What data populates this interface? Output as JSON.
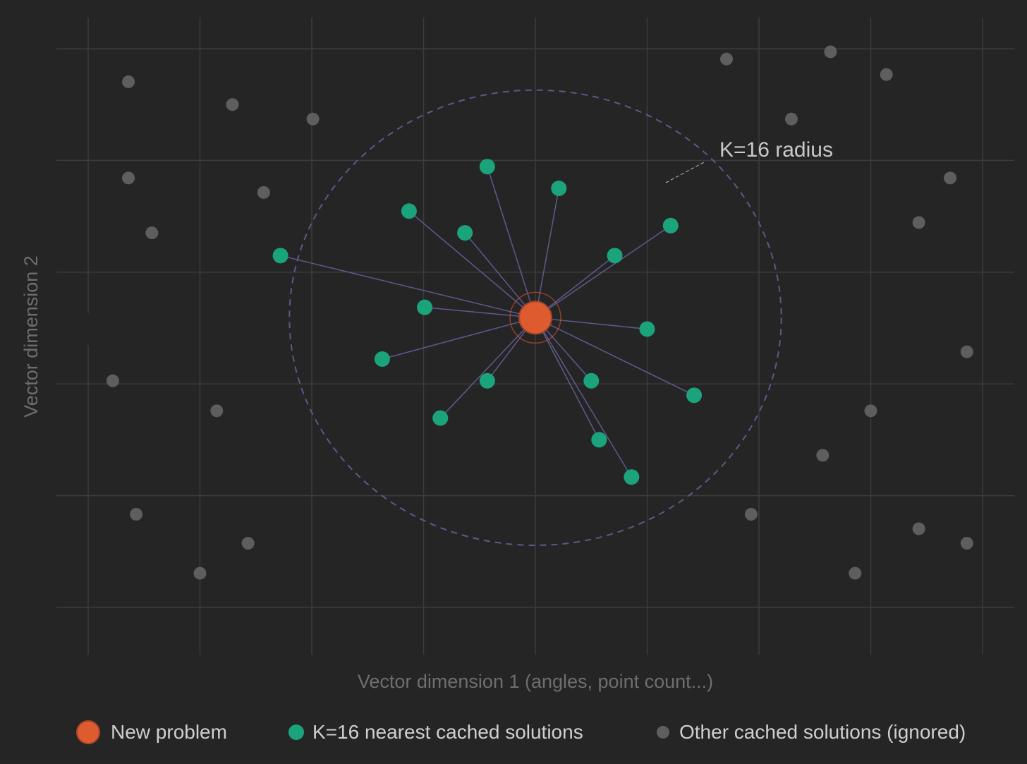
{
  "chart_data": {
    "type": "scatter",
    "title": "",
    "xlabel": "Vector dimension 1 (angles, point count...)",
    "ylabel": "Vector dimension 2",
    "grid": true,
    "legend_position": "bottom",
    "xlim": [
      0.0,
      8.0
    ],
    "ylim": [
      0.0,
      5.4
    ],
    "radius_label": "K=16 radius",
    "center": {
      "x": 4.0,
      "y": 2.8
    },
    "radius": 2.2,
    "series": [
      {
        "name": "New problem",
        "color": "#DE5B2F",
        "points": [
          {
            "x": 4.0,
            "y": 2.8
          }
        ]
      },
      {
        "name": "K=16 nearest cached solutions",
        "color": "#1BA47C",
        "points": [
          {
            "x": 3.57,
            "y": 4.26
          },
          {
            "x": 4.21,
            "y": 4.05
          },
          {
            "x": 2.87,
            "y": 3.83
          },
          {
            "x": 3.37,
            "y": 3.62
          },
          {
            "x": 1.72,
            "y": 3.4
          },
          {
            "x": 4.71,
            "y": 3.4
          },
          {
            "x": 5.21,
            "y": 3.69
          },
          {
            "x": 3.01,
            "y": 2.9
          },
          {
            "x": 5.0,
            "y": 2.69
          },
          {
            "x": 2.63,
            "y": 2.4
          },
          {
            "x": 3.57,
            "y": 2.19
          },
          {
            "x": 4.5,
            "y": 2.19
          },
          {
            "x": 5.42,
            "y": 2.05
          },
          {
            "x": 3.15,
            "y": 1.83
          },
          {
            "x": 4.57,
            "y": 1.62
          },
          {
            "x": 4.86,
            "y": 1.26
          }
        ]
      },
      {
        "name": "Other cached solutions (ignored)",
        "color": "#5E5E5E",
        "points": [
          {
            "x": 0.36,
            "y": 5.08
          },
          {
            "x": 1.29,
            "y": 4.86
          },
          {
            "x": 2.01,
            "y": 4.72
          },
          {
            "x": 0.36,
            "y": 4.15
          },
          {
            "x": 1.57,
            "y": 4.01
          },
          {
            "x": 0.57,
            "y": 3.62
          },
          {
            "x": 0.22,
            "y": 2.19
          },
          {
            "x": 1.15,
            "y": 1.9
          },
          {
            "x": 0.43,
            "y": 0.9
          },
          {
            "x": 1.43,
            "y": 0.62
          },
          {
            "x": 1.0,
            "y": 0.33
          },
          {
            "x": 5.71,
            "y": 5.3
          },
          {
            "x": 6.64,
            "y": 5.37
          },
          {
            "x": 7.14,
            "y": 5.15
          },
          {
            "x": 6.29,
            "y": 4.72
          },
          {
            "x": 7.71,
            "y": 4.15
          },
          {
            "x": 7.43,
            "y": 3.72
          },
          {
            "x": 7.86,
            "y": 2.47
          },
          {
            "x": 7.0,
            "y": 1.9
          },
          {
            "x": 6.57,
            "y": 1.47
          },
          {
            "x": 5.93,
            "y": 0.9
          },
          {
            "x": 7.43,
            "y": 0.76
          },
          {
            "x": 7.86,
            "y": 0.62
          },
          {
            "x": 6.86,
            "y": 0.33
          }
        ]
      }
    ]
  },
  "legend": [
    {
      "label": "New problem",
      "color": "#DE5B2F",
      "kind": "large"
    },
    {
      "label": "K=16 nearest cached solutions",
      "color": "#1BA47C",
      "kind": "medium"
    },
    {
      "label": "Other cached solutions (ignored)",
      "color": "#5E5E5E",
      "kind": "small"
    }
  ],
  "colors": {
    "background": "#252525",
    "grid": "#3C3C3C",
    "link": "#5F5A8E",
    "radius_ring": "#5C5A87",
    "axis_text": "#6E6E6E",
    "label_text": "#C9C9C9"
  }
}
